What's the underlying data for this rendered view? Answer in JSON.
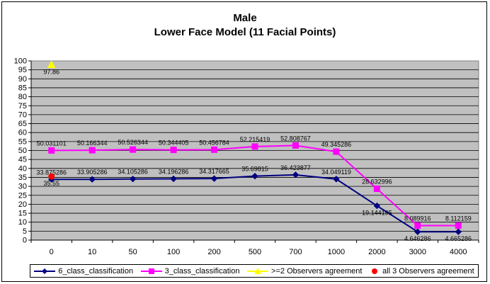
{
  "chart_data": {
    "type": "line",
    "title": "Male",
    "subtitle": "Lower Face Model (11 Facial Points)",
    "categories": [
      "0",
      "10",
      "50",
      "100",
      "200",
      "500",
      "700",
      "1000",
      "2000",
      "3000",
      "4000"
    ],
    "yticks": [
      "0",
      "5",
      "10",
      "15",
      "20",
      "25",
      "30",
      "35",
      "40",
      "45",
      "50",
      "55",
      "60",
      "65",
      "70",
      "75",
      "80",
      "85",
      "90",
      "95",
      "100"
    ],
    "ylim": [
      0,
      100
    ],
    "grid": true,
    "legend_position": "bottom",
    "series": [
      {
        "name": "6_class_classification",
        "color": "#000080",
        "marker": "diamond",
        "values": [
          33.875286,
          33.905286,
          34.105286,
          34.196286,
          34.317665,
          35.69815,
          36.423877,
          34.049119,
          19.144195,
          4.646286,
          4.665286
        ],
        "labels": [
          "33.875286",
          "33.905286",
          "34.105286",
          "34.196286",
          "34.317665",
          "35.69815",
          "36.423877",
          "34.049119",
          "19.144195",
          "4.646286",
          "4.665286"
        ]
      },
      {
        "name": "3_class_classification",
        "color": "#ff00ff",
        "marker": "square",
        "values": [
          50.031101,
          50.166344,
          50.526344,
          50.344405,
          50.456784,
          52.215419,
          52.808767,
          49.345286,
          28.632996,
          8.089916,
          8.112159
        ],
        "labels": [
          "50.031101",
          "50.166344",
          "50.526344",
          "50.344405",
          "50.456784",
          "52.215419",
          "52.808767",
          "49.345286",
          "28.632996",
          "8.089916",
          "8.112159"
        ]
      },
      {
        "name": ">=2 Observers agreement",
        "color": "#ffff00",
        "marker": "triangle",
        "x": [
          "0"
        ],
        "values": [
          97.86
        ],
        "labels": [
          "97.86"
        ]
      },
      {
        "name": "all 3 Observers agreement",
        "color": "#ff0000",
        "marker": "circle",
        "x": [
          "0"
        ],
        "values": [
          35.55
        ],
        "labels": [
          "35.55"
        ]
      }
    ]
  }
}
